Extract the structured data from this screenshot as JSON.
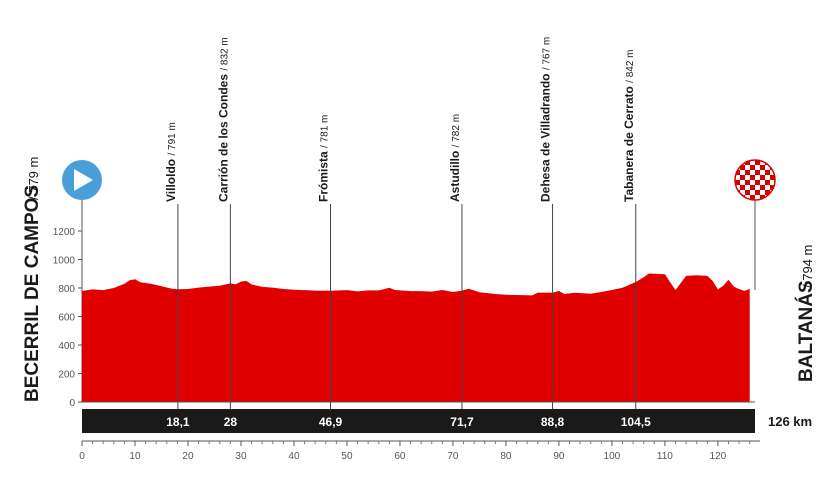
{
  "chart_data": {
    "type": "area",
    "start": {
      "name": "BECERRIL DE CAMPOS",
      "altitude": "/ 779 m"
    },
    "finish": {
      "name": "BALTANÁS",
      "altitude": "/ 794 m"
    },
    "total_distance_label": "126 km",
    "x_ticks": [
      "0",
      "10",
      "20",
      "30",
      "40",
      "50",
      "60",
      "70",
      "80",
      "90",
      "100",
      "110",
      "120"
    ],
    "y_ticks": [
      "0",
      "200",
      "400",
      "600",
      "800",
      "1000",
      "1200"
    ],
    "xlim": [
      0,
      127
    ],
    "ylim": [
      0,
      1200
    ],
    "points": [
      {
        "name": "Villoldo",
        "alt": "/ 791 m",
        "km": 18.1,
        "km_label": "18,1"
      },
      {
        "name": "Carrión de los Condes",
        "alt": "/ 832 m",
        "km": 28,
        "km_label": "28"
      },
      {
        "name": "Frómista",
        "alt": "/ 781 m",
        "km": 46.9,
        "km_label": "46,9"
      },
      {
        "name": "Astudillo",
        "alt": "/ 782 m",
        "km": 71.7,
        "km_label": "71,7"
      },
      {
        "name": "Dehesa de Villadrando",
        "alt": "/ 767 m",
        "km": 88.8,
        "km_label": "88,8"
      },
      {
        "name": "Tabanera de Cerrato",
        "alt": "/ 842 m",
        "km": 104.5,
        "km_label": "104,5"
      }
    ],
    "profile": [
      [
        0,
        779
      ],
      [
        2,
        790
      ],
      [
        4,
        785
      ],
      [
        6,
        800
      ],
      [
        8,
        830
      ],
      [
        9,
        855
      ],
      [
        10,
        862
      ],
      [
        11,
        840
      ],
      [
        13,
        830
      ],
      [
        15,
        812
      ],
      [
        17,
        795
      ],
      [
        18.1,
        791
      ],
      [
        20,
        793
      ],
      [
        22,
        803
      ],
      [
        24,
        810
      ],
      [
        26,
        816
      ],
      [
        28,
        832
      ],
      [
        29,
        826
      ],
      [
        30,
        845
      ],
      [
        31,
        850
      ],
      [
        32,
        825
      ],
      [
        34,
        808
      ],
      [
        36,
        803
      ],
      [
        38,
        793
      ],
      [
        40,
        788
      ],
      [
        42,
        785
      ],
      [
        44,
        782
      ],
      [
        46.9,
        781
      ],
      [
        50,
        785
      ],
      [
        52,
        776
      ],
      [
        54,
        783
      ],
      [
        56,
        783
      ],
      [
        57,
        792
      ],
      [
        58,
        802
      ],
      [
        59,
        786
      ],
      [
        62,
        778
      ],
      [
        64,
        778
      ],
      [
        66,
        775
      ],
      [
        68,
        786
      ],
      [
        70,
        772
      ],
      [
        71.7,
        782
      ],
      [
        73,
        795
      ],
      [
        75,
        770
      ],
      [
        78,
        758
      ],
      [
        80,
        752
      ],
      [
        83,
        750
      ],
      [
        85,
        748
      ],
      [
        86,
        768
      ],
      [
        88.8,
        767
      ],
      [
        90,
        780
      ],
      [
        91,
        758
      ],
      [
        93,
        766
      ],
      [
        96,
        760
      ],
      [
        98,
        772
      ],
      [
        100,
        786
      ],
      [
        102,
        802
      ],
      [
        104.5,
        842
      ],
      [
        106,
        875
      ],
      [
        107,
        902
      ],
      [
        108,
        900
      ],
      [
        110,
        896
      ],
      [
        111,
        840
      ],
      [
        112,
        785
      ],
      [
        113,
        835
      ],
      [
        114,
        885
      ],
      [
        116,
        890
      ],
      [
        118,
        885
      ],
      [
        119,
        850
      ],
      [
        120,
        790
      ],
      [
        121,
        815
      ],
      [
        122,
        858
      ],
      [
        123,
        810
      ],
      [
        124,
        792
      ],
      [
        125,
        780
      ],
      [
        126,
        794
      ]
    ],
    "colors": {
      "profile": "#e00000",
      "band": "#1a1a1a",
      "start_icon": "#4a9fd8",
      "axis": "#555555"
    },
    "icons": {
      "start": "play-circle-icon",
      "finish": "checkered-flag-icon"
    }
  }
}
